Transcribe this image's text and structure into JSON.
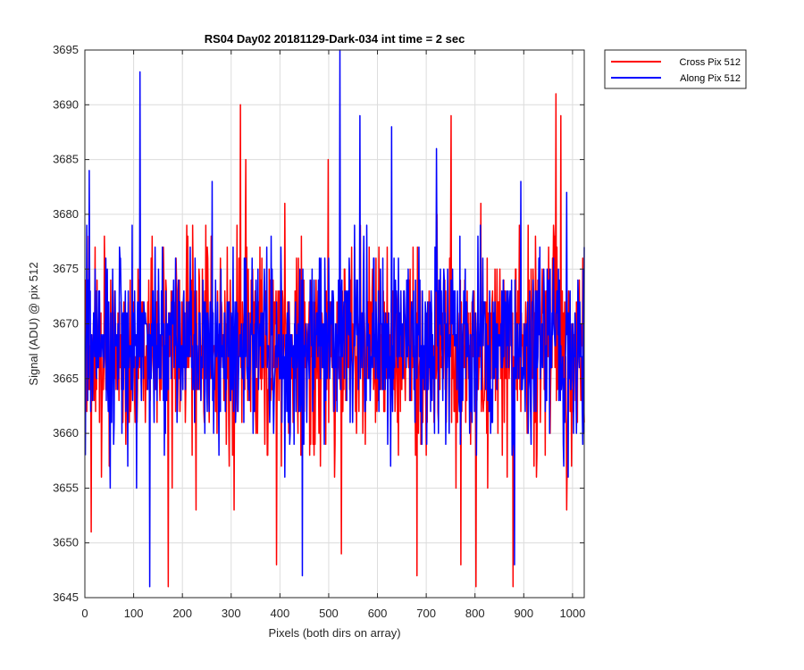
{
  "chart_data": {
    "type": "line",
    "title": "RS04 Day02 20181129-Dark-034 int time = 2 sec",
    "xlabel": "Pixels (both dirs on array)",
    "ylabel": "Signal (ADU) @ pix 512",
    "xlim": [
      0,
      1024
    ],
    "ylim": [
      3645,
      3695
    ],
    "xticks": [
      0,
      100,
      200,
      300,
      400,
      500,
      600,
      700,
      800,
      900,
      1000
    ],
    "yticks": [
      3645,
      3650,
      3655,
      3660,
      3665,
      3670,
      3675,
      3680,
      3685,
      3690,
      3695
    ],
    "grid": true,
    "legend_position": "outside-top-right",
    "series": [
      {
        "name": "Cross Pix 512",
        "color": "#ff0000",
        "noise": {
          "count": 1024,
          "mean": 3668,
          "std": 4.7,
          "min": 3646,
          "max": 3691,
          "seed": 4021
        },
        "extremes": [
          [
            12,
            3651
          ],
          [
            170,
            3646
          ],
          [
            318,
            3690
          ],
          [
            392,
            3648
          ],
          [
            525,
            3649
          ],
          [
            680,
            3647
          ],
          [
            750,
            3689
          ],
          [
            770,
            3648
          ],
          [
            801,
            3646
          ],
          [
            877,
            3646
          ],
          [
            965,
            3691
          ],
          [
            975,
            3689
          ],
          [
            1020,
            3676
          ]
        ]
      },
      {
        "name": "Along Pix 512",
        "color": "#0000ff",
        "noise": {
          "count": 1024,
          "mean": 3668,
          "std": 4.2,
          "min": 3646,
          "max": 3695,
          "seed": 1187
        },
        "extremes": [
          [
            8,
            3684
          ],
          [
            112,
            3693
          ],
          [
            132,
            3646
          ],
          [
            260,
            3683
          ],
          [
            445,
            3647
          ],
          [
            522,
            3695
          ],
          [
            563,
            3689
          ],
          [
            628,
            3688
          ],
          [
            720,
            3686
          ],
          [
            880,
            3648
          ],
          [
            908,
            3660
          ]
        ]
      }
    ]
  }
}
